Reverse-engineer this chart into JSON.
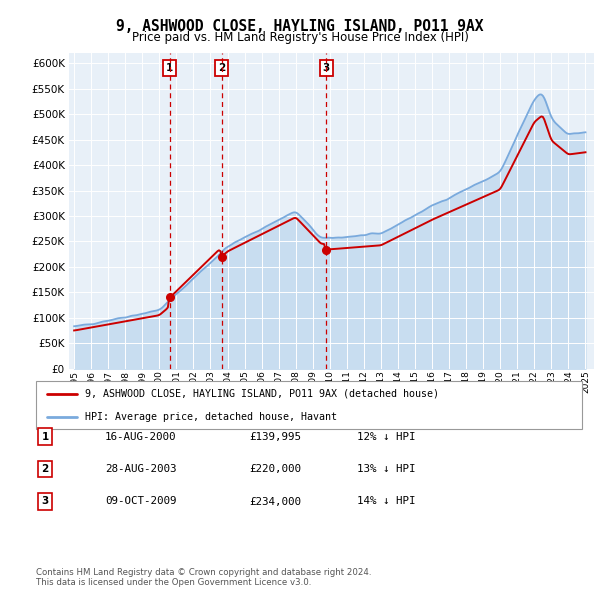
{
  "title": "9, ASHWOOD CLOSE, HAYLING ISLAND, PO11 9AX",
  "subtitle": "Price paid vs. HM Land Registry's House Price Index (HPI)",
  "legend_line1": "9, ASHWOOD CLOSE, HAYLING ISLAND, PO11 9AX (detached house)",
  "legend_line2": "HPI: Average price, detached house, Havant",
  "footer": "Contains HM Land Registry data © Crown copyright and database right 2024.\nThis data is licensed under the Open Government Licence v3.0.",
  "transactions": [
    {
      "num": 1,
      "date": "16-AUG-2000",
      "price": 139995,
      "price_str": "£139,995",
      "pct": "12%",
      "dir": "↓",
      "year_x": 2000.62
    },
    {
      "num": 2,
      "date": "28-AUG-2003",
      "price": 220000,
      "price_str": "£220,000",
      "pct": "13%",
      "dir": "↓",
      "year_x": 2003.65
    },
    {
      "num": 3,
      "date": "09-OCT-2009",
      "price": 234000,
      "price_str": "£234,000",
      "pct": "14%",
      "dir": "↓",
      "year_x": 2009.78
    }
  ],
  "hpi_color": "#7aaadd",
  "hpi_fill_color": "#c8ddf0",
  "price_color": "#cc0000",
  "vline_color": "#cc0000",
  "bg_plot": "#e8f0f8",
  "bg_fig": "#ffffff",
  "grid_color": "#ffffff",
  "ylim": [
    0,
    620000
  ],
  "xlim_start": 1994.7,
  "xlim_end": 2025.5,
  "yticks": [
    0,
    50000,
    100000,
    150000,
    200000,
    250000,
    300000,
    350000,
    400000,
    450000,
    500000,
    550000,
    600000
  ],
  "xticks": [
    1995,
    1996,
    1997,
    1998,
    1999,
    2000,
    2001,
    2002,
    2003,
    2004,
    2005,
    2006,
    2007,
    2008,
    2009,
    2010,
    2011,
    2012,
    2013,
    2014,
    2015,
    2016,
    2017,
    2018,
    2019,
    2020,
    2021,
    2022,
    2023,
    2024,
    2025
  ]
}
